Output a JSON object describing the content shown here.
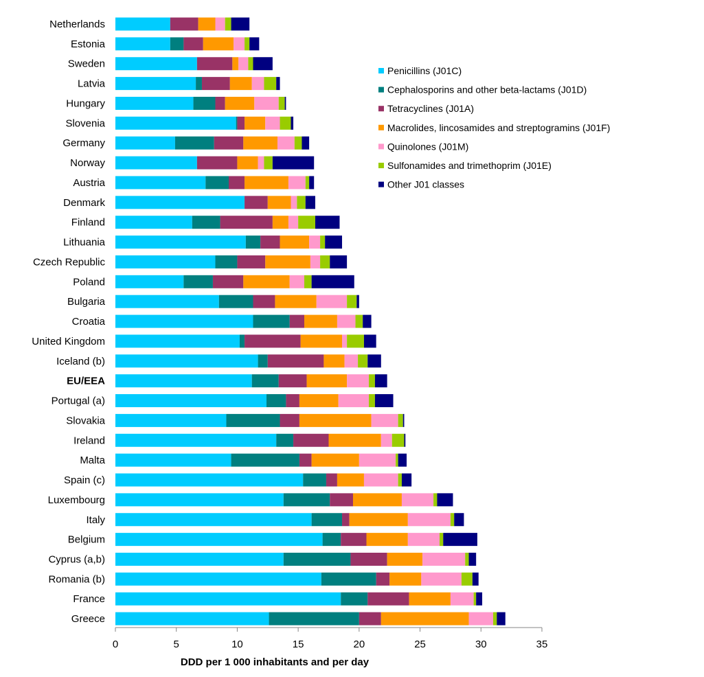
{
  "chart_data": {
    "type": "bar",
    "orientation": "horizontal",
    "stacked": true,
    "xlabel": "DDD per 1 000 inhabitants and per day",
    "xlim": [
      0,
      35
    ],
    "xticks": [
      0,
      5,
      10,
      15,
      20,
      25,
      30,
      35
    ],
    "grid": false,
    "legend_position": "top-right",
    "bold_categories": [
      "EU/EEA"
    ],
    "categories": [
      "Netherlands",
      "Estonia",
      "Sweden",
      "Latvia",
      "Hungary",
      "Slovenia",
      "Germany",
      "Norway",
      "Austria",
      "Denmark",
      "Finland",
      "Lithuania",
      "Czech Republic",
      "Poland",
      "Bulgaria",
      "Croatia",
      "United Kingdom",
      "Iceland (b)",
      "EU/EEA",
      "Portugal (a)",
      "Slovakia",
      "Ireland",
      "Malta",
      "Spain (c)",
      "Luxembourg",
      "Italy",
      "Belgium",
      "Cyprus (a,b)",
      "Romania (b)",
      "France",
      "Greece"
    ],
    "series": [
      {
        "name": "Penicillins (J01C)",
        "color": "#00CCFF",
        "values": [
          4.5,
          4.5,
          6.7,
          6.6,
          6.4,
          9.9,
          4.9,
          6.7,
          7.4,
          10.6,
          6.3,
          10.7,
          8.2,
          5.6,
          8.5,
          11.3,
          10.2,
          11.7,
          11.2,
          12.4,
          9.1,
          13.2,
          9.5,
          15.4,
          13.8,
          16.1,
          17.0,
          13.8,
          16.9,
          18.5,
          12.6
        ]
      },
      {
        "name": "Cephalosporins and other beta-lactams (J01D)",
        "color": "#007F7F",
        "values": [
          0.0,
          1.1,
          0.0,
          0.5,
          1.8,
          0.1,
          3.2,
          0.0,
          1.9,
          0.0,
          2.3,
          1.2,
          1.8,
          2.4,
          2.8,
          3.0,
          0.4,
          0.8,
          2.2,
          1.6,
          4.4,
          1.4,
          5.6,
          1.9,
          3.8,
          2.5,
          1.5,
          5.5,
          4.5,
          2.2,
          7.4
        ]
      },
      {
        "name": "Tetracyclines (J01A)",
        "color": "#993366",
        "values": [
          2.3,
          1.6,
          2.9,
          2.3,
          0.8,
          0.6,
          2.4,
          3.3,
          1.3,
          1.9,
          4.3,
          1.6,
          2.3,
          2.5,
          1.8,
          1.2,
          4.6,
          4.6,
          2.3,
          1.1,
          1.6,
          2.9,
          1.0,
          0.9,
          1.9,
          0.6,
          2.1,
          3.0,
          1.1,
          3.4,
          1.8
        ]
      },
      {
        "name": "Macrolides, lincosamides and streptogramins (J01F)",
        "color": "#FF9900",
        "values": [
          1.4,
          2.5,
          0.5,
          1.8,
          2.4,
          1.7,
          2.8,
          1.7,
          3.6,
          1.9,
          1.3,
          2.4,
          3.7,
          3.8,
          3.4,
          2.7,
          3.4,
          1.7,
          3.3,
          3.2,
          5.9,
          4.3,
          3.9,
          2.2,
          4.0,
          4.8,
          3.4,
          2.9,
          2.6,
          3.4,
          7.2
        ]
      },
      {
        "name": "Quinolones (J01M)",
        "color": "#FF99CC",
        "values": [
          0.8,
          0.9,
          0.8,
          1.0,
          2.0,
          1.2,
          1.4,
          0.5,
          1.4,
          0.5,
          0.8,
          0.9,
          0.8,
          1.2,
          2.5,
          1.5,
          0.4,
          1.1,
          1.8,
          2.5,
          2.2,
          0.9,
          3.0,
          2.8,
          2.6,
          3.5,
          2.6,
          3.5,
          3.3,
          1.9,
          2.0
        ]
      },
      {
        "name": "Sulfonamides and trimethoprim (J01E)",
        "color": "#99CC00",
        "values": [
          0.5,
          0.4,
          0.4,
          1.0,
          0.5,
          0.9,
          0.6,
          0.7,
          0.3,
          0.7,
          1.4,
          0.4,
          0.8,
          0.6,
          0.8,
          0.6,
          1.4,
          0.8,
          0.5,
          0.5,
          0.4,
          1.0,
          0.2,
          0.3,
          0.3,
          0.3,
          0.3,
          0.3,
          0.9,
          0.2,
          0.3
        ]
      },
      {
        "name": "Other J01 classes",
        "color": "#000080",
        "values": [
          1.5,
          0.8,
          1.6,
          0.3,
          0.1,
          0.2,
          0.6,
          3.4,
          0.4,
          0.8,
          2.0,
          1.4,
          1.4,
          3.5,
          0.2,
          0.7,
          1.0,
          1.1,
          1.0,
          1.5,
          0.1,
          0.1,
          0.7,
          0.8,
          1.3,
          0.8,
          2.8,
          0.6,
          0.5,
          0.5,
          0.7
        ]
      }
    ]
  }
}
